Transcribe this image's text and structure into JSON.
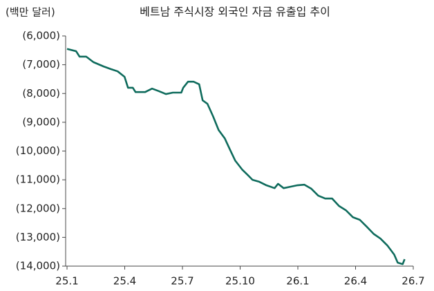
{
  "chart_data": {
    "type": "line",
    "title": "베트남 주식시장 외국인 자금 유출입 추이",
    "y_axis_label": "(백만 달러)",
    "x": [
      0,
      0.47,
      0.65,
      1.0,
      1.37,
      1.9,
      2.27,
      2.63,
      2.99,
      3.17,
      3.42,
      3.56,
      4.06,
      4.42,
      4.78,
      5.14,
      5.5,
      5.94,
      6.04,
      6.29,
      6.58,
      6.87,
      7.05,
      7.3,
      7.59,
      7.88,
      8.2,
      8.45,
      8.74,
      9.1,
      9.39,
      9.64,
      10.0,
      10.36,
      10.79,
      10.97,
      11.26,
      11.62,
      11.98,
      12.34,
      12.7,
      13.06,
      13.42,
      13.78,
      14.14,
      14.5,
      14.86,
      15.22,
      15.58,
      15.94,
      16.29,
      16.65,
      17.01,
      17.19,
      17.45,
      17.55
    ],
    "series": [
      {
        "name": "외국인 자금 유출입",
        "color": "#0e6b5c",
        "values": [
          -6450,
          -6530,
          -6720,
          -6720,
          -6910,
          -7060,
          -7150,
          -7230,
          -7420,
          -7800,
          -7800,
          -7950,
          -7950,
          -7830,
          -7920,
          -8020,
          -7970,
          -7970,
          -7800,
          -7590,
          -7590,
          -7680,
          -8240,
          -8360,
          -8790,
          -9270,
          -9560,
          -9920,
          -10330,
          -10640,
          -10830,
          -11000,
          -11070,
          -11190,
          -11290,
          -11140,
          -11290,
          -11240,
          -11190,
          -11170,
          -11310,
          -11550,
          -11650,
          -11650,
          -11910,
          -12060,
          -12300,
          -12390,
          -12630,
          -12880,
          -13040,
          -13280,
          -13600,
          -13880,
          -13930,
          -13760
        ]
      }
    ],
    "xlim": [
      0,
      18
    ],
    "xticks": [
      {
        "value": 0,
        "label": "25.1"
      },
      {
        "value": 3,
        "label": "25.4"
      },
      {
        "value": 6,
        "label": "25.7"
      },
      {
        "value": 9,
        "label": "25.10"
      },
      {
        "value": 12,
        "label": "26.1"
      },
      {
        "value": 15,
        "label": "26.4"
      },
      {
        "value": 18,
        "label": "26.7"
      }
    ],
    "ylim": [
      -14000,
      -6000
    ],
    "yticks": [
      {
        "value": -6000,
        "label": "(6,000)"
      },
      {
        "value": -7000,
        "label": "(7,000)"
      },
      {
        "value": -8000,
        "label": "(8,000)"
      },
      {
        "value": -9000,
        "label": "(9,000)"
      },
      {
        "value": -10000,
        "label": "(10,000)"
      },
      {
        "value": -11000,
        "label": "(11,000)"
      },
      {
        "value": -12000,
        "label": "(12,000)"
      },
      {
        "value": -13000,
        "label": "(13,000)"
      },
      {
        "value": -14000,
        "label": "(14,000)"
      }
    ],
    "grid": false
  }
}
